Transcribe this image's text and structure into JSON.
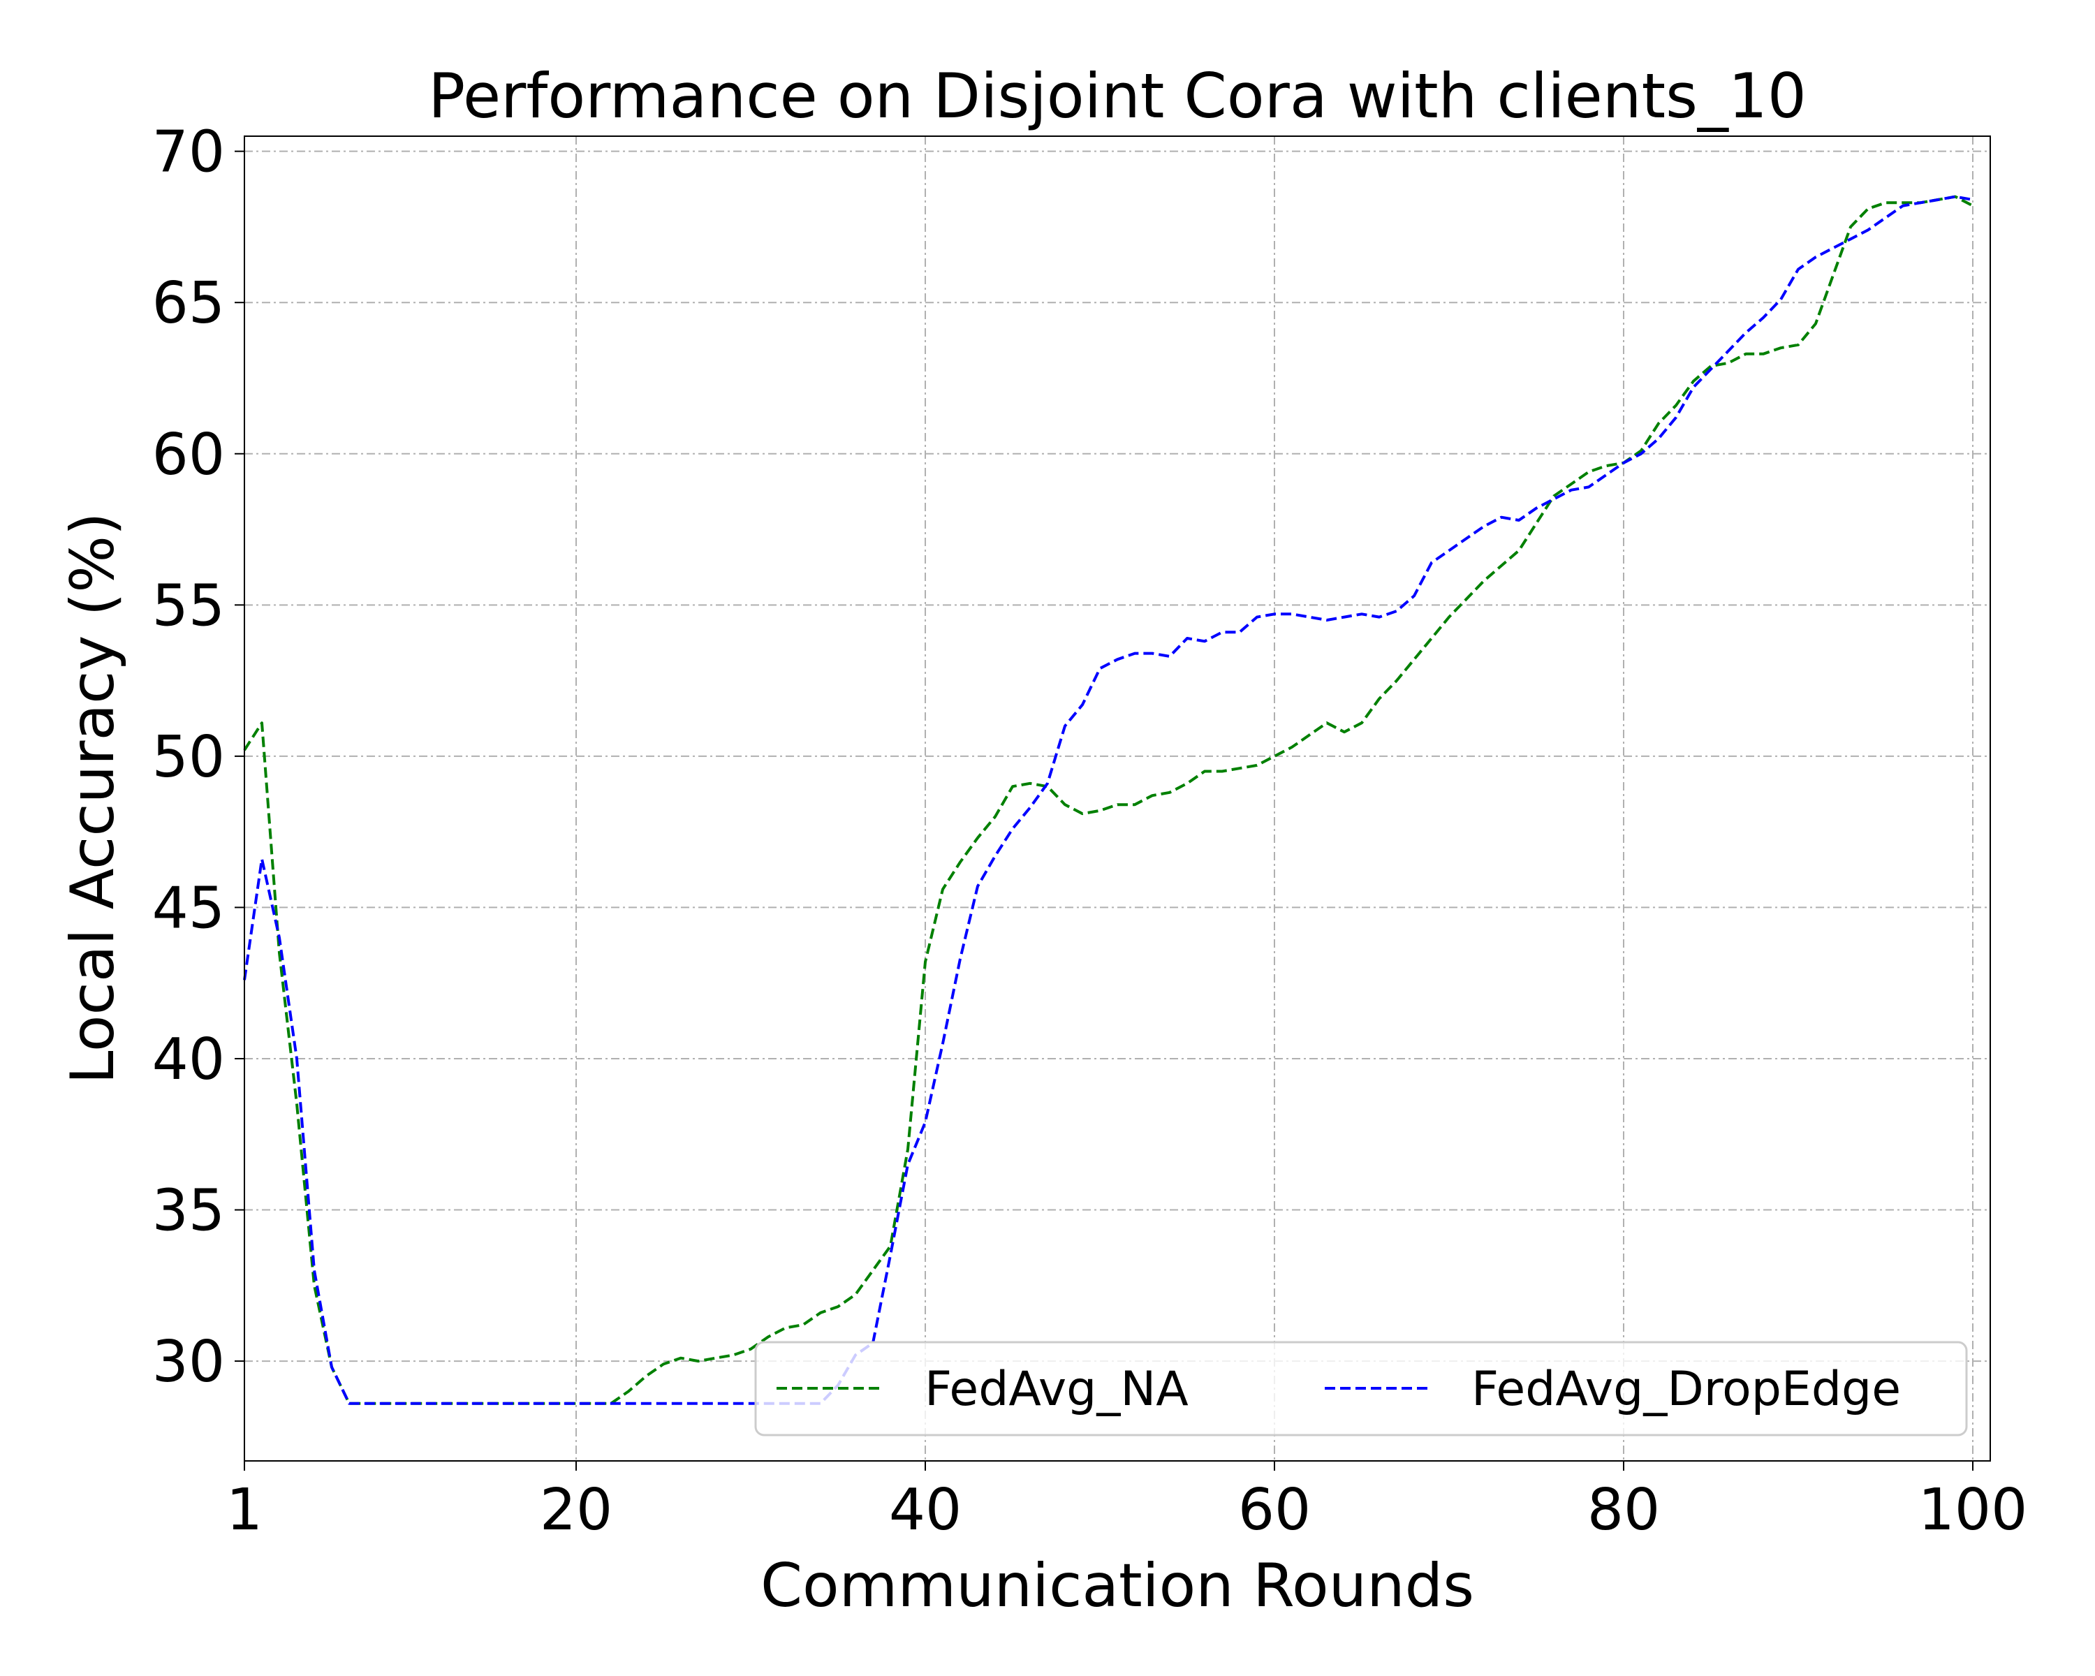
{
  "chart_data": {
    "type": "line",
    "title": "Performance on Disjoint Cora with clients_10",
    "xlabel": "Communication Rounds",
    "ylabel": "Local Accuracy (%)",
    "xlim": [
      1,
      101
    ],
    "ylim": [
      26.7,
      70.5
    ],
    "xticks": [
      1,
      20,
      40,
      60,
      80,
      100
    ],
    "yticks": [
      30,
      35,
      40,
      45,
      50,
      55,
      60,
      65,
      70
    ],
    "grid": true,
    "legend": {
      "placement": "lower-right",
      "columns": 2
    },
    "series": [
      {
        "name": "FedAvg_NA",
        "color": "#008000",
        "style": "dashed",
        "x": [
          1,
          2,
          3,
          4,
          5,
          6,
          7,
          8,
          9,
          10,
          11,
          12,
          13,
          14,
          15,
          16,
          17,
          18,
          19,
          20,
          21,
          22,
          23,
          24,
          25,
          26,
          27,
          28,
          29,
          30,
          31,
          32,
          33,
          34,
          35,
          36,
          37,
          38,
          39,
          40,
          41,
          42,
          43,
          44,
          45,
          46,
          47,
          48,
          49,
          50,
          51,
          52,
          53,
          54,
          55,
          56,
          57,
          58,
          59,
          60,
          61,
          62,
          63,
          64,
          65,
          66,
          67,
          68,
          69,
          70,
          71,
          72,
          73,
          74,
          75,
          76,
          77,
          78,
          79,
          80,
          81,
          82,
          83,
          84,
          85,
          86,
          87,
          88,
          89,
          90,
          91,
          92,
          93,
          94,
          95,
          96,
          97,
          98,
          99,
          100
        ],
        "y": [
          50.2,
          51.1,
          43.5,
          38.5,
          32.5,
          29.8,
          28.6,
          28.6,
          28.6,
          28.6,
          28.6,
          28.6,
          28.6,
          28.6,
          28.6,
          28.6,
          28.6,
          28.6,
          28.6,
          28.6,
          28.6,
          28.6,
          29.0,
          29.5,
          29.9,
          30.1,
          30.0,
          30.1,
          30.2,
          30.4,
          30.8,
          31.1,
          31.2,
          31.6,
          31.8,
          32.2,
          33.0,
          33.8,
          37.0,
          43.2,
          45.6,
          46.5,
          47.3,
          48.0,
          49.0,
          49.1,
          49.0,
          48.4,
          48.1,
          48.2,
          48.4,
          48.4,
          48.7,
          48.8,
          49.1,
          49.5,
          49.5,
          49.6,
          49.7,
          50.0,
          50.3,
          50.7,
          51.1,
          50.8,
          51.1,
          51.9,
          52.5,
          53.2,
          53.9,
          54.6,
          55.2,
          55.8,
          56.3,
          56.8,
          57.7,
          58.6,
          59.0,
          59.4,
          59.6,
          59.7,
          60.1,
          61.0,
          61.6,
          62.4,
          62.9,
          63.0,
          63.3,
          63.3,
          63.5,
          63.6,
          64.3,
          65.9,
          67.5,
          68.1,
          68.3,
          68.3,
          68.3,
          68.4,
          68.5,
          68.2
        ]
      },
      {
        "name": "FedAvg_DropEdge",
        "color": "#0000ff",
        "style": "dashed",
        "x": [
          1,
          2,
          3,
          4,
          5,
          6,
          7,
          8,
          9,
          10,
          11,
          12,
          13,
          14,
          15,
          16,
          17,
          18,
          19,
          20,
          21,
          22,
          23,
          24,
          25,
          26,
          27,
          28,
          29,
          30,
          31,
          32,
          33,
          34,
          35,
          36,
          37,
          38,
          39,
          40,
          41,
          42,
          43,
          44,
          45,
          46,
          47,
          48,
          49,
          50,
          51,
          52,
          53,
          54,
          55,
          56,
          57,
          58,
          59,
          60,
          61,
          62,
          63,
          64,
          65,
          66,
          67,
          68,
          69,
          70,
          71,
          72,
          73,
          74,
          75,
          76,
          77,
          78,
          79,
          80,
          81,
          82,
          83,
          84,
          85,
          86,
          87,
          88,
          89,
          90,
          91,
          92,
          93,
          94,
          95,
          96,
          97,
          98,
          99,
          100
        ],
        "y": [
          42.6,
          46.6,
          44.0,
          40.0,
          33.0,
          29.8,
          28.6,
          28.6,
          28.6,
          28.6,
          28.6,
          28.6,
          28.6,
          28.6,
          28.6,
          28.6,
          28.6,
          28.6,
          28.6,
          28.6,
          28.6,
          28.6,
          28.6,
          28.6,
          28.6,
          28.6,
          28.6,
          28.6,
          28.6,
          28.6,
          28.6,
          28.6,
          28.6,
          28.6,
          29.2,
          30.2,
          30.6,
          33.5,
          36.5,
          37.9,
          40.5,
          43.3,
          45.7,
          46.7,
          47.6,
          48.3,
          49.1,
          51.0,
          51.7,
          52.9,
          53.2,
          53.4,
          53.4,
          53.3,
          53.9,
          53.8,
          54.1,
          54.1,
          54.6,
          54.7,
          54.7,
          54.6,
          54.5,
          54.6,
          54.7,
          54.6,
          54.8,
          55.3,
          56.4,
          56.8,
          57.2,
          57.6,
          57.9,
          57.8,
          58.2,
          58.5,
          58.8,
          58.9,
          59.3,
          59.7,
          60.0,
          60.5,
          61.2,
          62.2,
          62.8,
          63.4,
          64.0,
          64.5,
          65.1,
          66.1,
          66.5,
          66.8,
          67.1,
          67.4,
          67.8,
          68.2,
          68.3,
          68.4,
          68.5,
          68.4
        ]
      }
    ]
  }
}
